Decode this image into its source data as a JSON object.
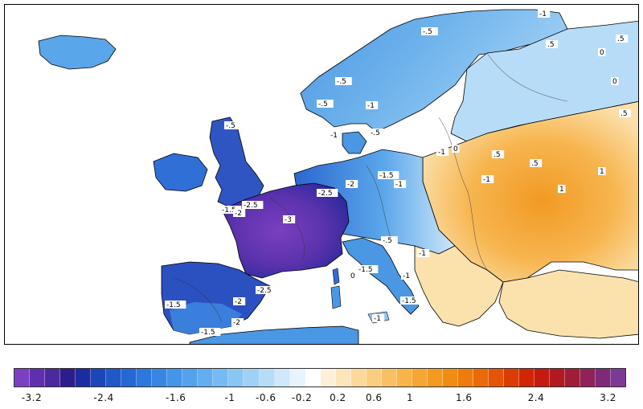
{
  "map": {
    "title": "",
    "contour_labels": [
      "-1",
      "-.5",
      "-.5",
      "-1",
      "-.5",
      "-1",
      "-.5",
      "-1",
      "-.5",
      "-1.5",
      "-2",
      "-2.5",
      "-2",
      "-2.5",
      "-3",
      "-1.5",
      "-1.5",
      "-1",
      "-2",
      "-2.5",
      "-2",
      "-1.5",
      "-1.5",
      "-1",
      "-1",
      "-1",
      "0",
      "0",
      ".5",
      ".5",
      "1",
      ".5",
      "1",
      ".5",
      "0",
      ".5",
      "0",
      "-.5",
      "-1.5",
      "-1"
    ],
    "region_colors": {
      "ocean": "#ffffff",
      "coast": "#000000",
      "very_cold": "#7a3fbf",
      "deep_blue": "#2a2aa6",
      "blue": "#2f6fd6",
      "mid_blue": "#4a97e3",
      "light_blue": "#8cc8f1",
      "pale_blue": "#cfe9fb",
      "pale_orange": "#fbe2ad",
      "orange": "#f7b14a",
      "deep_orange": "#ef8b1c"
    }
  },
  "colorbar": {
    "colors": [
      "#7b3fc4",
      "#5f2fae",
      "#4a2a9c",
      "#2a1f8a",
      "#1a2ca0",
      "#1c45b8",
      "#2158c8",
      "#2468d4",
      "#2c78dc",
      "#3787e2",
      "#4395e8",
      "#52a2ec",
      "#62aef0",
      "#75baf2",
      "#89c6f4",
      "#9fd1f6",
      "#b6dcf8",
      "#cfe8fb",
      "#e7f4fd",
      "#ffffff",
      "#fdf0d8",
      "#fce4bb",
      "#fbd89c",
      "#fbcd80",
      "#f9c063",
      "#f8b44a",
      "#f6a733",
      "#f49a1f",
      "#f18c12",
      "#ee7c0c",
      "#ea6a08",
      "#e45506",
      "#dc3c04",
      "#d22503",
      "#c41a10",
      "#b2191f",
      "#a01d3a",
      "#8e2359",
      "#7f2a78",
      "#7c3a96"
    ],
    "ticks": [
      {
        "label": "-3.2",
        "value": -3.2
      },
      {
        "label": "-2.4",
        "value": -2.4
      },
      {
        "label": "-1.6",
        "value": -1.6
      },
      {
        "label": "-1",
        "value": -1
      },
      {
        "label": "-0.6",
        "value": -0.6
      },
      {
        "label": "-0.2",
        "value": -0.2
      },
      {
        "label": "0.2",
        "value": 0.2
      },
      {
        "label": "0.6",
        "value": 0.6
      },
      {
        "label": "1",
        "value": 1
      },
      {
        "label": "1.6",
        "value": 1.6
      },
      {
        "label": "2.4",
        "value": 2.4
      },
      {
        "label": "3.2",
        "value": 3.2
      }
    ]
  }
}
